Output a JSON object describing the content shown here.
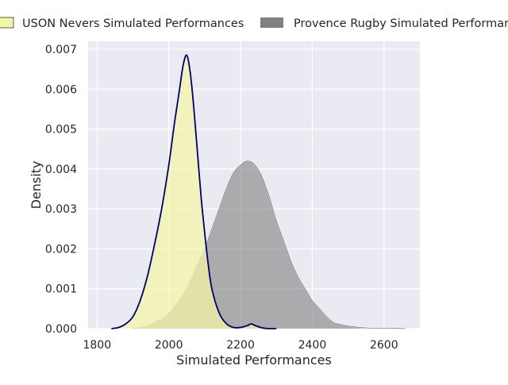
{
  "chart_data": {
    "type": "area",
    "title": "",
    "xlabel": "Simulated Performances",
    "ylabel": "Density",
    "xlim": [
      1775,
      2700
    ],
    "ylim": [
      0,
      0.0072
    ],
    "grid": true,
    "legend_position": "top",
    "x_ticks": [
      1800,
      2000,
      2200,
      2400,
      2600
    ],
    "x_tick_labels": [
      "1800",
      "2000",
      "2200",
      "2400",
      "2600"
    ],
    "y_ticks": [
      0,
      0.001,
      0.002,
      0.003,
      0.004,
      0.005,
      0.006,
      0.007
    ],
    "y_tick_labels": [
      "0.000",
      "0.001",
      "0.002",
      "0.003",
      "0.004",
      "0.005",
      "0.006",
      "0.007"
    ],
    "series": [
      {
        "name": "USON Nevers Simulated Performances",
        "fill_color": "#f5f5a6",
        "line_color": "#000066",
        "points": [
          [
            1840,
            0.0
          ],
          [
            1860,
            3e-05
          ],
          [
            1880,
            0.00012
          ],
          [
            1900,
            0.0003
          ],
          [
            1920,
            0.0007
          ],
          [
            1940,
            0.0013
          ],
          [
            1960,
            0.0021
          ],
          [
            1980,
            0.003
          ],
          [
            2000,
            0.0041
          ],
          [
            2015,
            0.0051
          ],
          [
            2030,
            0.006
          ],
          [
            2040,
            0.0066
          ],
          [
            2050,
            0.00685
          ],
          [
            2060,
            0.0064
          ],
          [
            2070,
            0.0055
          ],
          [
            2080,
            0.0044
          ],
          [
            2090,
            0.0033
          ],
          [
            2100,
            0.0024
          ],
          [
            2110,
            0.0016
          ],
          [
            2120,
            0.001
          ],
          [
            2140,
            0.0004
          ],
          [
            2160,
            0.00013
          ],
          [
            2180,
            3e-05
          ],
          [
            2200,
            3e-05
          ],
          [
            2220,
            8e-05
          ],
          [
            2230,
            0.00012
          ],
          [
            2240,
            8e-05
          ],
          [
            2260,
            2e-05
          ],
          [
            2280,
            0.0
          ],
          [
            2300,
            0.0
          ]
        ]
      },
      {
        "name": "Provence Rugby Simulated Performances",
        "fill_color": "#808080",
        "line_color": "#555555",
        "points": [
          [
            1900,
            0.0
          ],
          [
            1930,
            5e-05
          ],
          [
            1960,
            0.00015
          ],
          [
            1990,
            0.0003
          ],
          [
            2020,
            0.0006
          ],
          [
            2050,
            0.001
          ],
          [
            2080,
            0.0016
          ],
          [
            2100,
            0.002
          ],
          [
            2120,
            0.0025
          ],
          [
            2140,
            0.003
          ],
          [
            2160,
            0.0035
          ],
          [
            2180,
            0.0039
          ],
          [
            2200,
            0.0041
          ],
          [
            2220,
            0.0042
          ],
          [
            2240,
            0.0041
          ],
          [
            2260,
            0.0038
          ],
          [
            2280,
            0.0033
          ],
          [
            2300,
            0.0027
          ],
          [
            2320,
            0.0022
          ],
          [
            2340,
            0.0017
          ],
          [
            2360,
            0.0013
          ],
          [
            2380,
            0.001
          ],
          [
            2400,
            0.0007
          ],
          [
            2420,
            0.0005
          ],
          [
            2440,
            0.0003
          ],
          [
            2460,
            0.00015
          ],
          [
            2480,
            0.0001
          ],
          [
            2500,
            6e-05
          ],
          [
            2550,
            2e-05
          ],
          [
            2600,
            1e-05
          ],
          [
            2660,
            0.0
          ]
        ]
      }
    ]
  }
}
